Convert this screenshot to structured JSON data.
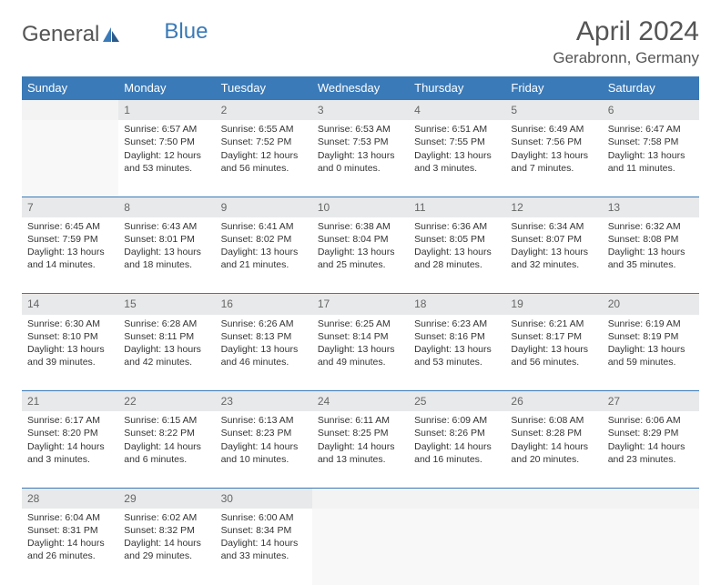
{
  "logo": {
    "part1": "General",
    "part2": "Blue"
  },
  "title": "April 2024",
  "location": "Gerabronn, Germany",
  "colors": {
    "header_bg": "#3a7ab8",
    "header_text": "#ffffff",
    "daynum_bg": "#e8e9ea",
    "empty_bg": "#f3f3f3",
    "border": "#3a7ab8",
    "text": "#333333"
  },
  "day_headers": [
    "Sunday",
    "Monday",
    "Tuesday",
    "Wednesday",
    "Thursday",
    "Friday",
    "Saturday"
  ],
  "weeks": [
    {
      "nums": [
        "",
        "1",
        "2",
        "3",
        "4",
        "5",
        "6"
      ],
      "cells": [
        null,
        {
          "sunrise": "Sunrise: 6:57 AM",
          "sunset": "Sunset: 7:50 PM",
          "daylight": "Daylight: 12 hours and 53 minutes."
        },
        {
          "sunrise": "Sunrise: 6:55 AM",
          "sunset": "Sunset: 7:52 PM",
          "daylight": "Daylight: 12 hours and 56 minutes."
        },
        {
          "sunrise": "Sunrise: 6:53 AM",
          "sunset": "Sunset: 7:53 PM",
          "daylight": "Daylight: 13 hours and 0 minutes."
        },
        {
          "sunrise": "Sunrise: 6:51 AM",
          "sunset": "Sunset: 7:55 PM",
          "daylight": "Daylight: 13 hours and 3 minutes."
        },
        {
          "sunrise": "Sunrise: 6:49 AM",
          "sunset": "Sunset: 7:56 PM",
          "daylight": "Daylight: 13 hours and 7 minutes."
        },
        {
          "sunrise": "Sunrise: 6:47 AM",
          "sunset": "Sunset: 7:58 PM",
          "daylight": "Daylight: 13 hours and 11 minutes."
        }
      ]
    },
    {
      "nums": [
        "7",
        "8",
        "9",
        "10",
        "11",
        "12",
        "13"
      ],
      "cells": [
        {
          "sunrise": "Sunrise: 6:45 AM",
          "sunset": "Sunset: 7:59 PM",
          "daylight": "Daylight: 13 hours and 14 minutes."
        },
        {
          "sunrise": "Sunrise: 6:43 AM",
          "sunset": "Sunset: 8:01 PM",
          "daylight": "Daylight: 13 hours and 18 minutes."
        },
        {
          "sunrise": "Sunrise: 6:41 AM",
          "sunset": "Sunset: 8:02 PM",
          "daylight": "Daylight: 13 hours and 21 minutes."
        },
        {
          "sunrise": "Sunrise: 6:38 AM",
          "sunset": "Sunset: 8:04 PM",
          "daylight": "Daylight: 13 hours and 25 minutes."
        },
        {
          "sunrise": "Sunrise: 6:36 AM",
          "sunset": "Sunset: 8:05 PM",
          "daylight": "Daylight: 13 hours and 28 minutes."
        },
        {
          "sunrise": "Sunrise: 6:34 AM",
          "sunset": "Sunset: 8:07 PM",
          "daylight": "Daylight: 13 hours and 32 minutes."
        },
        {
          "sunrise": "Sunrise: 6:32 AM",
          "sunset": "Sunset: 8:08 PM",
          "daylight": "Daylight: 13 hours and 35 minutes."
        }
      ]
    },
    {
      "nums": [
        "14",
        "15",
        "16",
        "17",
        "18",
        "19",
        "20"
      ],
      "cells": [
        {
          "sunrise": "Sunrise: 6:30 AM",
          "sunset": "Sunset: 8:10 PM",
          "daylight": "Daylight: 13 hours and 39 minutes."
        },
        {
          "sunrise": "Sunrise: 6:28 AM",
          "sunset": "Sunset: 8:11 PM",
          "daylight": "Daylight: 13 hours and 42 minutes."
        },
        {
          "sunrise": "Sunrise: 6:26 AM",
          "sunset": "Sunset: 8:13 PM",
          "daylight": "Daylight: 13 hours and 46 minutes."
        },
        {
          "sunrise": "Sunrise: 6:25 AM",
          "sunset": "Sunset: 8:14 PM",
          "daylight": "Daylight: 13 hours and 49 minutes."
        },
        {
          "sunrise": "Sunrise: 6:23 AM",
          "sunset": "Sunset: 8:16 PM",
          "daylight": "Daylight: 13 hours and 53 minutes."
        },
        {
          "sunrise": "Sunrise: 6:21 AM",
          "sunset": "Sunset: 8:17 PM",
          "daylight": "Daylight: 13 hours and 56 minutes."
        },
        {
          "sunrise": "Sunrise: 6:19 AM",
          "sunset": "Sunset: 8:19 PM",
          "daylight": "Daylight: 13 hours and 59 minutes."
        }
      ]
    },
    {
      "nums": [
        "21",
        "22",
        "23",
        "24",
        "25",
        "26",
        "27"
      ],
      "cells": [
        {
          "sunrise": "Sunrise: 6:17 AM",
          "sunset": "Sunset: 8:20 PM",
          "daylight": "Daylight: 14 hours and 3 minutes."
        },
        {
          "sunrise": "Sunrise: 6:15 AM",
          "sunset": "Sunset: 8:22 PM",
          "daylight": "Daylight: 14 hours and 6 minutes."
        },
        {
          "sunrise": "Sunrise: 6:13 AM",
          "sunset": "Sunset: 8:23 PM",
          "daylight": "Daylight: 14 hours and 10 minutes."
        },
        {
          "sunrise": "Sunrise: 6:11 AM",
          "sunset": "Sunset: 8:25 PM",
          "daylight": "Daylight: 14 hours and 13 minutes."
        },
        {
          "sunrise": "Sunrise: 6:09 AM",
          "sunset": "Sunset: 8:26 PM",
          "daylight": "Daylight: 14 hours and 16 minutes."
        },
        {
          "sunrise": "Sunrise: 6:08 AM",
          "sunset": "Sunset: 8:28 PM",
          "daylight": "Daylight: 14 hours and 20 minutes."
        },
        {
          "sunrise": "Sunrise: 6:06 AM",
          "sunset": "Sunset: 8:29 PM",
          "daylight": "Daylight: 14 hours and 23 minutes."
        }
      ]
    },
    {
      "nums": [
        "28",
        "29",
        "30",
        "",
        "",
        "",
        ""
      ],
      "cells": [
        {
          "sunrise": "Sunrise: 6:04 AM",
          "sunset": "Sunset: 8:31 PM",
          "daylight": "Daylight: 14 hours and 26 minutes."
        },
        {
          "sunrise": "Sunrise: 6:02 AM",
          "sunset": "Sunset: 8:32 PM",
          "daylight": "Daylight: 14 hours and 29 minutes."
        },
        {
          "sunrise": "Sunrise: 6:00 AM",
          "sunset": "Sunset: 8:34 PM",
          "daylight": "Daylight: 14 hours and 33 minutes."
        },
        null,
        null,
        null,
        null
      ]
    }
  ]
}
